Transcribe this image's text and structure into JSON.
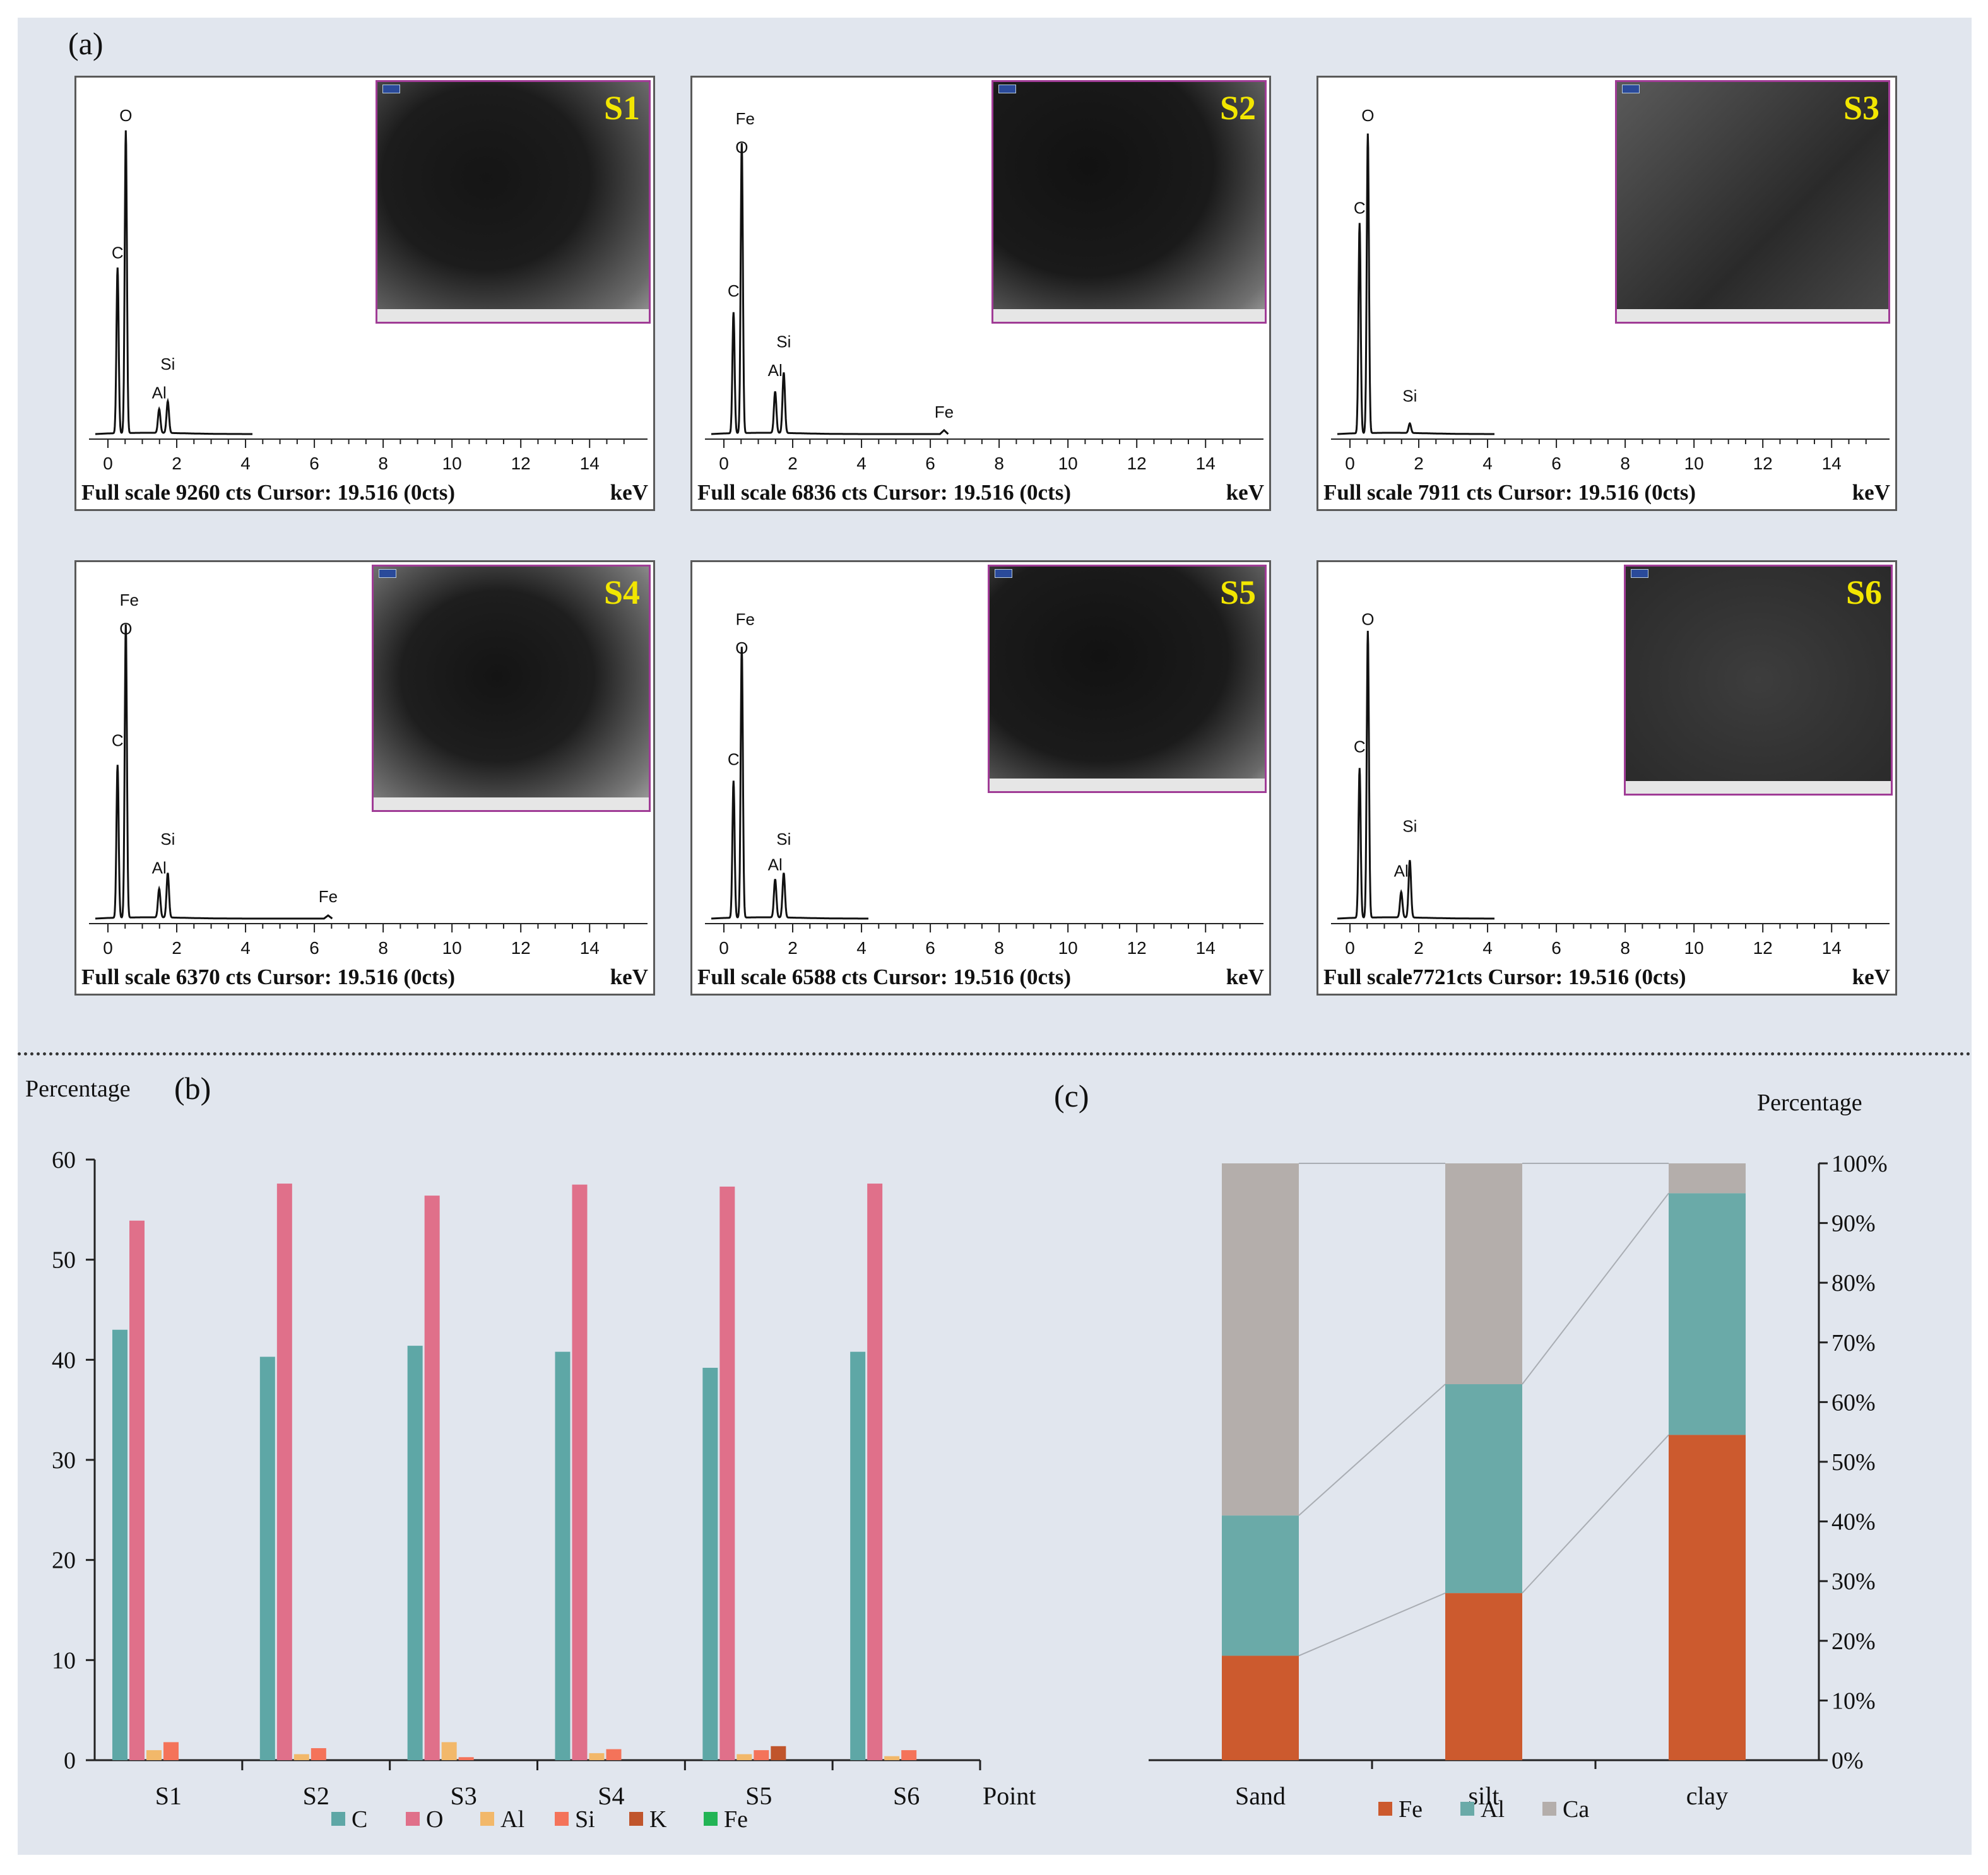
{
  "panel_labels": {
    "a": "(a)",
    "b": "(b)",
    "c": "(c)"
  },
  "edx_common": {
    "x_ticks": [
      "0",
      "2",
      "4",
      "6",
      "8",
      "10",
      "12",
      "14"
    ],
    "x_unit": "keV",
    "xlim": [
      0,
      15.5
    ]
  },
  "edx_spectra": [
    {
      "id": "S1",
      "footer": "Full scale 9260 cts Cursor: 19.516 (0cts)",
      "peaks": [
        {
          "element": "C",
          "kev": 0.28,
          "rel": 0.52
        },
        {
          "element": "O",
          "kev": 0.52,
          "rel": 0.95
        },
        {
          "element": "Al",
          "kev": 1.49,
          "rel": 0.075
        },
        {
          "element": "Si",
          "kev": 1.74,
          "rel": 0.1
        }
      ],
      "labels": [
        {
          "text": "O",
          "kev": 0.52,
          "rel": 0.97
        },
        {
          "text": "C",
          "kev": 0.28,
          "rel": 0.54
        },
        {
          "text": "Si",
          "kev": 1.74,
          "rel": 0.19
        },
        {
          "text": "Al",
          "kev": 1.49,
          "rel": 0.1
        }
      ]
    },
    {
      "id": "S2",
      "footer": "Full scale 6836 cts Cursor: 19.516 (0cts)",
      "peaks": [
        {
          "element": "C",
          "kev": 0.28,
          "rel": 0.38
        },
        {
          "element": "O",
          "kev": 0.52,
          "rel": 0.91
        },
        {
          "element": "Al",
          "kev": 1.49,
          "rel": 0.13
        },
        {
          "element": "Si",
          "kev": 1.74,
          "rel": 0.19
        },
        {
          "element": "Fe",
          "kev": 6.4,
          "rel": 0.012
        }
      ],
      "labels": [
        {
          "text": "Fe",
          "kev": 0.62,
          "rel": 0.96
        },
        {
          "text": "O",
          "kev": 0.52,
          "rel": 0.87
        },
        {
          "text": "C",
          "kev": 0.28,
          "rel": 0.42
        },
        {
          "text": "Si",
          "kev": 1.74,
          "rel": 0.26
        },
        {
          "text": "Al",
          "kev": 1.49,
          "rel": 0.17
        },
        {
          "text": "Fe",
          "kev": 6.4,
          "rel": 0.04
        }
      ]
    },
    {
      "id": "S3",
      "footer": "Full scale 7911 cts Cursor: 19.516 (0cts)",
      "peaks": [
        {
          "element": "C",
          "kev": 0.28,
          "rel": 0.66
        },
        {
          "element": "O",
          "kev": 0.52,
          "rel": 0.94
        },
        {
          "element": "Si",
          "kev": 1.74,
          "rel": 0.03
        }
      ],
      "labels": [
        {
          "text": "O",
          "kev": 0.52,
          "rel": 0.97
        },
        {
          "text": "C",
          "kev": 0.28,
          "rel": 0.68
        },
        {
          "text": "Si",
          "kev": 1.74,
          "rel": 0.09
        }
      ]
    },
    {
      "id": "S4",
      "footer": "Full scale 6370 cts Cursor: 19.516 (0cts)",
      "peaks": [
        {
          "element": "C",
          "kev": 0.28,
          "rel": 0.48
        },
        {
          "element": "O",
          "kev": 0.52,
          "rel": 0.92
        },
        {
          "element": "Al",
          "kev": 1.49,
          "rel": 0.09
        },
        {
          "element": "Si",
          "kev": 1.74,
          "rel": 0.14
        },
        {
          "element": "Fe",
          "kev": 6.4,
          "rel": 0.01
        }
      ],
      "labels": [
        {
          "text": "Fe",
          "kev": 0.62,
          "rel": 0.97
        },
        {
          "text": "O",
          "kev": 0.52,
          "rel": 0.88
        },
        {
          "text": "C",
          "kev": 0.28,
          "rel": 0.53
        },
        {
          "text": "Si",
          "kev": 1.74,
          "rel": 0.22
        },
        {
          "text": "Al",
          "kev": 1.49,
          "rel": 0.13
        },
        {
          "text": "Fe",
          "kev": 6.4,
          "rel": 0.04
        }
      ]
    },
    {
      "id": "S5",
      "footer": "Full scale 6588 cts Cursor: 19.516 (0cts)",
      "peaks": [
        {
          "element": "C",
          "kev": 0.28,
          "rel": 0.43
        },
        {
          "element": "O",
          "kev": 0.52,
          "rel": 0.85
        },
        {
          "element": "Al",
          "kev": 1.49,
          "rel": 0.12
        },
        {
          "element": "Si",
          "kev": 1.74,
          "rel": 0.14
        }
      ],
      "labels": [
        {
          "text": "Fe",
          "kev": 0.62,
          "rel": 0.91
        },
        {
          "text": "O",
          "kev": 0.52,
          "rel": 0.82
        },
        {
          "text": "C",
          "kev": 0.28,
          "rel": 0.47
        },
        {
          "text": "Si",
          "kev": 1.74,
          "rel": 0.22
        },
        {
          "text": "Al",
          "kev": 1.49,
          "rel": 0.14
        }
      ]
    },
    {
      "id": "S6",
      "footer": "Full scale7721cts Cursor: 19.516 (0cts)",
      "peaks": [
        {
          "element": "C",
          "kev": 0.28,
          "rel": 0.47
        },
        {
          "element": "O",
          "kev": 0.52,
          "rel": 0.9
        },
        {
          "element": "Al",
          "kev": 1.49,
          "rel": 0.08
        },
        {
          "element": "Si",
          "kev": 1.74,
          "rel": 0.18
        }
      ],
      "labels": [
        {
          "text": "O",
          "kev": 0.52,
          "rel": 0.91
        },
        {
          "text": "C",
          "kev": 0.28,
          "rel": 0.51
        },
        {
          "text": "Si",
          "kev": 1.74,
          "rel": 0.26
        },
        {
          "text": "Al",
          "kev": 1.49,
          "rel": 0.12
        }
      ]
    }
  ],
  "chart_data": [
    {
      "type": "bar",
      "panel": "(b)",
      "ylabel": "Percentage",
      "xlabel": "Point",
      "ylim": [
        0,
        60
      ],
      "y_ticks": [
        0,
        10,
        20,
        30,
        40,
        50,
        60
      ],
      "categories": [
        "S1",
        "S2",
        "S3",
        "S4",
        "S5",
        "S6"
      ],
      "series": [
        {
          "name": "C",
          "color": "#5ea7a6",
          "values": [
            43.0,
            40.3,
            41.4,
            40.8,
            39.2,
            40.8
          ]
        },
        {
          "name": "O",
          "color": "#e0708a",
          "values": [
            53.9,
            57.6,
            56.4,
            57.5,
            57.3,
            57.6
          ]
        },
        {
          "name": "Al",
          "color": "#f2b86a",
          "values": [
            1.0,
            0.6,
            1.8,
            0.7,
            0.6,
            0.4
          ]
        },
        {
          "name": "Si",
          "color": "#f4735a",
          "values": [
            1.8,
            1.2,
            0.3,
            1.1,
            1.0,
            1.0
          ]
        },
        {
          "name": "K",
          "color": "#c0552c",
          "values": [
            0.0,
            0.0,
            0.0,
            0.0,
            1.4,
            0.0
          ]
        },
        {
          "name": "Fe",
          "color": "#22b455",
          "values": [
            0.0,
            0.0,
            0.0,
            0.0,
            0.0,
            0.0
          ]
        }
      ]
    },
    {
      "type": "bar",
      "stacked": "percent",
      "panel": "(c)",
      "ylabel": "Percentage",
      "ylim": [
        0,
        100
      ],
      "y_ticks": [
        "0%",
        "10%",
        "20%",
        "30%",
        "40%",
        "50%",
        "60%",
        "70%",
        "80%",
        "90%",
        "100%"
      ],
      "categories": [
        "Sand",
        "silt",
        "clay"
      ],
      "series": [
        {
          "name": "Fe",
          "color": "#cc5a2e",
          "values": [
            17.5,
            28.0,
            54.5
          ]
        },
        {
          "name": "Al",
          "color": "#6aaaa8",
          "values": [
            23.5,
            35.0,
            40.5
          ]
        },
        {
          "name": "Ca",
          "color": "#b4aeab",
          "values": [
            59.0,
            37.0,
            5.0
          ]
        }
      ]
    }
  ]
}
